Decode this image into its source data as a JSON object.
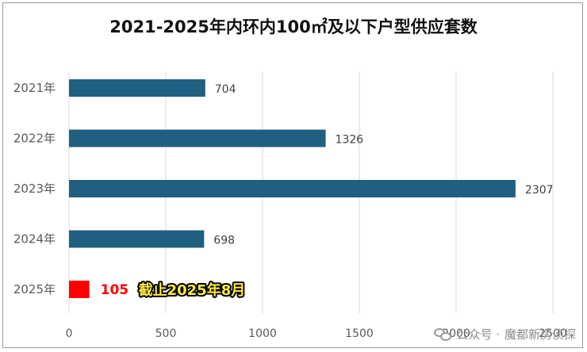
{
  "chart_data": {
    "type": "bar",
    "orientation": "horizontal",
    "title": "2021-2025年内环内100㎡及以下户型供应套数",
    "categories": [
      "2021年",
      "2022年",
      "2023年",
      "2024年",
      "2025年"
    ],
    "values": [
      704,
      1326,
      2307,
      698,
      105
    ],
    "bar_colors": [
      "#1f5f7f",
      "#1f5f7f",
      "#1f5f7f",
      "#1f5f7f",
      "#ff0000"
    ],
    "data_label_colors": [
      "#404040",
      "#404040",
      "#404040",
      "#404040",
      "#ff0000"
    ],
    "xlim": [
      0,
      2500
    ],
    "xticks": [
      0,
      500,
      1000,
      1500,
      2000,
      2500
    ],
    "grid": true,
    "annotation": {
      "text": "截止2025年8月",
      "category": "2025年",
      "text_color": "#ffeb3b",
      "background": "#000000"
    }
  },
  "watermark": {
    "prefix": "公众号 ·",
    "name": "魔都新房侦探",
    "icon": "wechat-icon"
  }
}
